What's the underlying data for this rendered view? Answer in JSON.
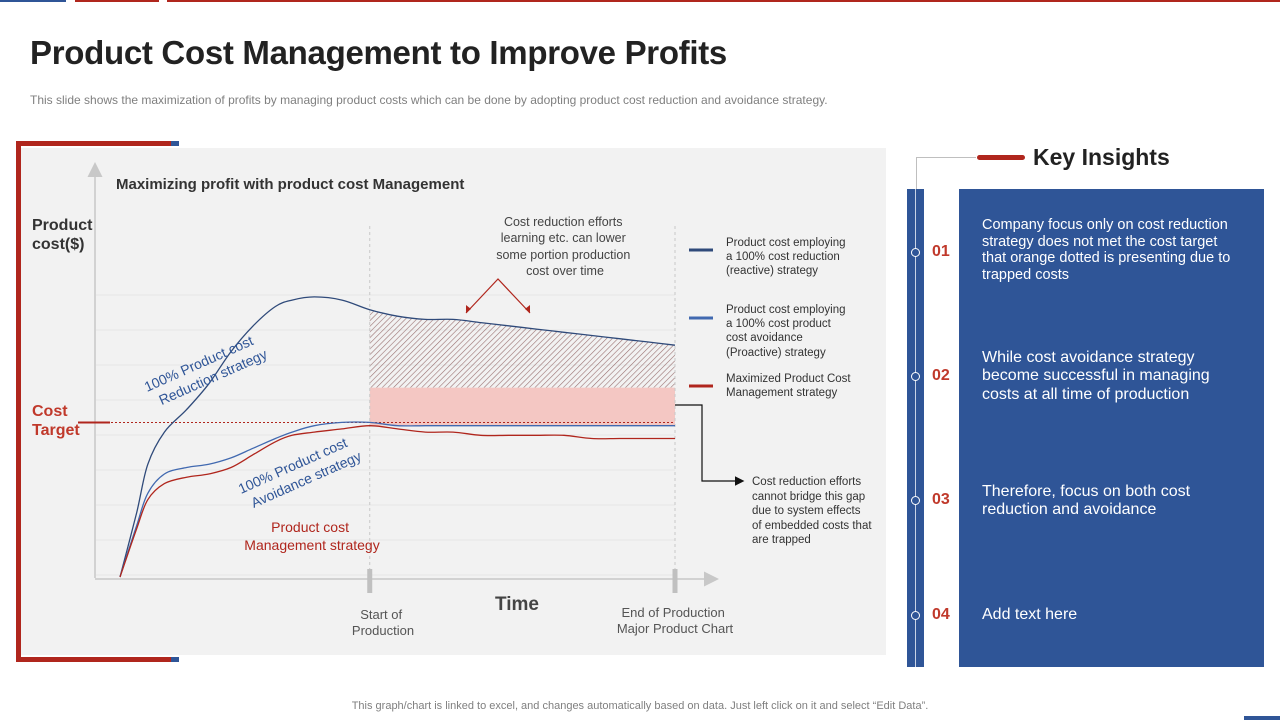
{
  "slide": {
    "title": "Product Cost Management to Improve Profits",
    "subtitle": "This slide shows the maximization of profits by managing product costs which can be done by adopting product cost reduction and avoidance  strategy.",
    "footer": "This graph/chart is linked to excel,  and changes automatically based on data. Just left click on it and select “Edit Data”."
  },
  "colors": {
    "accent_red": "#b0261d",
    "accent_blue": "#2f5597",
    "reduction_line": "#2f4a7a",
    "avoidance_line": "#4169b0",
    "management_line": "#b0261d",
    "number_red": "#c0392b",
    "gap_fill": "#f4c7c3"
  },
  "chart_data": {
    "type": "line",
    "title": "Maximizing profit with product cost Management",
    "ylabel": "Product cost($)",
    "xlabel": "Time",
    "x": [
      0,
      3,
      5,
      8,
      12,
      16,
      20,
      24,
      28,
      31,
      35,
      40,
      45,
      50,
      55,
      60,
      65,
      70,
      75,
      80,
      85,
      90,
      95,
      100
    ],
    "xlim": [
      0,
      100
    ],
    "ylim": [
      0,
      100
    ],
    "cost_target": 48,
    "markers": [
      {
        "x": 45,
        "label": "Start of Production"
      },
      {
        "x": 100,
        "label": "End of Production Major Product Chart"
      }
    ],
    "x_marker_labels": [
      "Start of",
      "Production",
      "End of Production",
      "Major Product Chart"
    ],
    "y_marker_labels": [
      "Cost",
      "Target"
    ],
    "series": [
      {
        "name": "Product cost employing a 100% cost reduction (reactive) strategy",
        "values": [
          0,
          20,
          35,
          45,
          52,
          60,
          70,
          78,
          84,
          86,
          87,
          86,
          83,
          81,
          80,
          80,
          79,
          78,
          77,
          76,
          75,
          74,
          73,
          72
        ]
      },
      {
        "name": "Product cost employing a 100% cost product cost avoidance (Proactive) strategy",
        "values": [
          0,
          16,
          26,
          32,
          34,
          35,
          37,
          40,
          43,
          45,
          47,
          48,
          48,
          47,
          47,
          47,
          47,
          47,
          47,
          47,
          47,
          47,
          47,
          47
        ]
      },
      {
        "name": "Maximized Product Cost Management strategy",
        "values": [
          0,
          15,
          24,
          29,
          31,
          32,
          34,
          38,
          42,
          44,
          45,
          46,
          47,
          46,
          45,
          45,
          44,
          44,
          44,
          44,
          43,
          43,
          43,
          43
        ]
      }
    ],
    "curve_labels": {
      "reduction": [
        "100% Product cost",
        "Reduction strategy"
      ],
      "avoidance": [
        "100% Product cost",
        "Avoidance strategy"
      ],
      "management": [
        "Product cost",
        "Management strategy"
      ]
    },
    "legend": [
      {
        "lines": [
          "Product cost employing",
          "a 100% cost reduction",
          "(reactive) strategy"
        ]
      },
      {
        "lines": [
          "Product cost employing",
          "a 100% cost product",
          "cost avoidance",
          "(Proactive) strategy"
        ]
      },
      {
        "lines": [
          "Maximized Product Cost",
          "Management strategy"
        ]
      }
    ],
    "annotations": {
      "top": [
        "Cost reduction efforts",
        "learning etc. can lower",
        "some portion production",
        "cost over time"
      ],
      "right": [
        "Cost reduction efforts",
        "cannot bridge this gap",
        "due to system effects",
        "of embedded costs that",
        "are trapped"
      ]
    }
  },
  "insights": {
    "title": "Key Insights",
    "items": [
      {
        "number": "01",
        "text": "Company focus only on cost reduction strategy does not met the cost target that orange dotted is presenting due to trapped costs"
      },
      {
        "number": "02",
        "text": "While cost avoidance strategy become successful in managing costs at all time of production"
      },
      {
        "number": "03",
        "text": "Therefore, focus on both cost reduction and avoidance"
      },
      {
        "number": "04",
        "text": "Add text here"
      }
    ]
  }
}
